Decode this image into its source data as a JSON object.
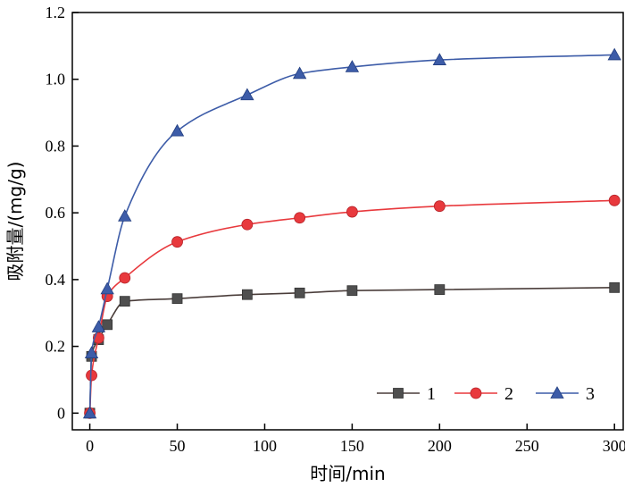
{
  "chart_data": {
    "type": "line",
    "xlabel": "时间/min",
    "ylabel": "吸附量/(mg/g)",
    "xlim": [
      -10,
      305
    ],
    "ylim": [
      -0.05,
      1.2
    ],
    "xticks": [
      0,
      50,
      100,
      150,
      200,
      250,
      300
    ],
    "yticks": [
      0,
      0.2,
      0.4,
      0.6,
      0.8,
      1.0,
      1.2
    ],
    "ytick_labels": [
      "0",
      "0.2",
      "0.4",
      "0.6",
      "0.8",
      "1.0",
      "1.2"
    ],
    "grid": false,
    "legend": "bottom-right",
    "series": [
      {
        "name": "1",
        "color": "#4a3d3a",
        "marker": "square",
        "marker_color": "#4f4f4f",
        "x": [
          0,
          1,
          5,
          10,
          20,
          50,
          90,
          120,
          150,
          200,
          300
        ],
        "y": [
          0,
          0.17,
          0.22,
          0.265,
          0.335,
          0.343,
          0.355,
          0.36,
          0.367,
          0.37,
          0.376
        ]
      },
      {
        "name": "2",
        "color": "#e8393d",
        "marker": "circle",
        "marker_color": "#e8393d",
        "x": [
          0,
          1,
          5,
          10,
          20,
          50,
          90,
          120,
          150,
          200,
          300
        ],
        "y": [
          0,
          0.113,
          0.225,
          0.35,
          0.405,
          0.513,
          0.565,
          0.585,
          0.603,
          0.62,
          0.637
        ]
      },
      {
        "name": "3",
        "color": "#3d5ca8",
        "marker": "triangle",
        "marker_color": "#3d5ca8",
        "x": [
          0,
          1,
          5,
          10,
          20,
          50,
          90,
          120,
          150,
          200,
          300
        ],
        "y": [
          0,
          0.18,
          0.258,
          0.372,
          0.59,
          0.845,
          0.953,
          1.017,
          1.037,
          1.058,
          1.073
        ]
      }
    ]
  }
}
